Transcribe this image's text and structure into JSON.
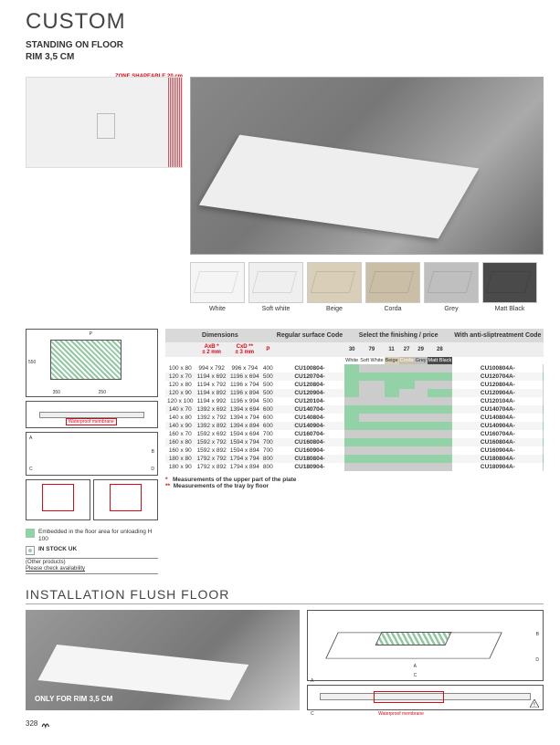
{
  "title": "CUSTOM",
  "subtitle1": "STANDING ON FLOOR",
  "subtitle2": "RIM 3,5 CM",
  "shapeable": {
    "label": "ZONE SHAPEABLE",
    "value": "20 cm"
  },
  "swatches": [
    {
      "label": "White",
      "color": "#f5f5f5"
    },
    {
      "label": "Soft white",
      "color": "#efefef"
    },
    {
      "label": "Beige",
      "color": "#d9cfb8"
    },
    {
      "label": "Corda",
      "color": "#cabfa6"
    },
    {
      "label": "Grey",
      "color": "#bfbfbf"
    },
    {
      "label": "Matt Black",
      "color": "#4a4a4a"
    }
  ],
  "table": {
    "headers": {
      "dim": "Dimensions",
      "reg": "Regular surface Code",
      "finish": "Select the finishing / price",
      "anti": "With anti-sliptreatment Code",
      "finish2": "Select the finishing / price"
    },
    "sub1": {
      "axb": "AxB *",
      "axb_tol": "± 2 mm",
      "cxd": "CxD **",
      "cxd_tol": "± 3 mm",
      "p": "P"
    },
    "codes": [
      "30",
      "79",
      "11",
      "27",
      "29",
      "28"
    ],
    "colors_row": [
      "White",
      "Soft White",
      "Beige",
      "Corda",
      "Grey",
      "Matt Black"
    ],
    "code2": "30",
    "color2": "White",
    "rows": [
      {
        "d": "100 x 80",
        "axb": "994 x 792",
        "cxd": "996 x 794",
        "p": "400",
        "code": "CU100804-",
        "g": [
          1,
          0,
          0,
          0,
          0,
          0
        ],
        "code2": "CU100804A-",
        "g2": 0
      },
      {
        "d": "120 x 70",
        "axb": "1194 x 692",
        "cxd": "1196 x 694",
        "p": "500",
        "code": "CU120704-",
        "g": [
          1,
          1,
          1,
          1,
          1,
          1
        ],
        "code2": "CU120704A-",
        "g2": 1
      },
      {
        "d": "120 x 80",
        "axb": "1194 x 792",
        "cxd": "1196 x 794",
        "p": "500",
        "code": "CU120804-",
        "g": [
          1,
          0,
          1,
          1,
          0,
          0
        ],
        "code2": "CU120804A-",
        "g2": 0
      },
      {
        "d": "120 x 90",
        "axb": "1194 x 892",
        "cxd": "1196 x 894",
        "p": "500",
        "code": "CU120904-",
        "g": [
          1,
          0,
          1,
          0,
          0,
          1
        ],
        "code2": "CU120904A-",
        "g2": 0
      },
      {
        "d": "120 x 100",
        "axb": "1194 x 992",
        "cxd": "1196 x 994",
        "p": "500",
        "code": "CU120104-",
        "g": [
          0,
          0,
          0,
          0,
          0,
          0
        ],
        "code2": "CU120104A-",
        "g2": 0
      },
      {
        "d": "140 x 70",
        "axb": "1392 x 692",
        "cxd": "1394 x 694",
        "p": "600",
        "code": "CU140704-",
        "g": [
          1,
          1,
          1,
          1,
          1,
          1
        ],
        "code2": "CU140704A-",
        "g2": 1
      },
      {
        "d": "140 x 80",
        "axb": "1392 x 792",
        "cxd": "1394 x 794",
        "p": "600",
        "code": "CU140804-",
        "g": [
          1,
          0,
          0,
          0,
          0,
          0
        ],
        "code2": "CU140804A-",
        "g2": 0
      },
      {
        "d": "140 x 90",
        "axb": "1392 x 892",
        "cxd": "1394 x 894",
        "p": "600",
        "code": "CU140904-",
        "g": [
          1,
          1,
          1,
          1,
          1,
          1
        ],
        "code2": "CU140904A-",
        "g2": 1
      },
      {
        "d": "160 x 70",
        "axb": "1592 x 692",
        "cxd": "1594 x 694",
        "p": "700",
        "code": "CU160704-",
        "g": [
          0,
          0,
          0,
          0,
          0,
          0
        ],
        "code2": "CU160704A-",
        "g2": 0
      },
      {
        "d": "160 x 80",
        "axb": "1592 x 792",
        "cxd": "1594 x 794",
        "p": "700",
        "code": "CU160804-",
        "g": [
          1,
          1,
          1,
          1,
          1,
          1
        ],
        "code2": "CU160804A-",
        "g2": 1
      },
      {
        "d": "160 x 90",
        "axb": "1592 x 892",
        "cxd": "1594 x 894",
        "p": "700",
        "code": "CU160904-",
        "g": [
          0,
          0,
          0,
          0,
          0,
          0
        ],
        "code2": "CU160904A-",
        "g2": 0
      },
      {
        "d": "180 x 80",
        "axb": "1792 x 792",
        "cxd": "1794 x 794",
        "p": "800",
        "code": "CU180804-",
        "g": [
          1,
          1,
          1,
          1,
          1,
          1
        ],
        "code2": "CU180804A-",
        "g2": 1
      },
      {
        "d": "180 x 90",
        "axb": "1792 x 892",
        "cxd": "1794 x 894",
        "p": "800",
        "code": "CU180904-",
        "g": [
          0,
          0,
          0,
          0,
          0,
          0
        ],
        "code2": "CU180904A-",
        "g2": 0
      }
    ]
  },
  "legend": {
    "embedded": "Embedded in the floor area for unloading H 100",
    "stock": "IN STOCK UK",
    "other1": "(Other products)",
    "other2": "Please check availability"
  },
  "notes": {
    "n1": "Measurements of the upper part of the plate",
    "n2": "Measurements of the tray by floor"
  },
  "install": {
    "title": "INSTALLATION FLUSH FLOOR",
    "only": "ONLY FOR RIM 3,5 CM",
    "membrane": "Waterproof membrane"
  },
  "diagram_dims": {
    "w1": "350",
    "w2": "250",
    "h": "550"
  },
  "page_number": "328"
}
